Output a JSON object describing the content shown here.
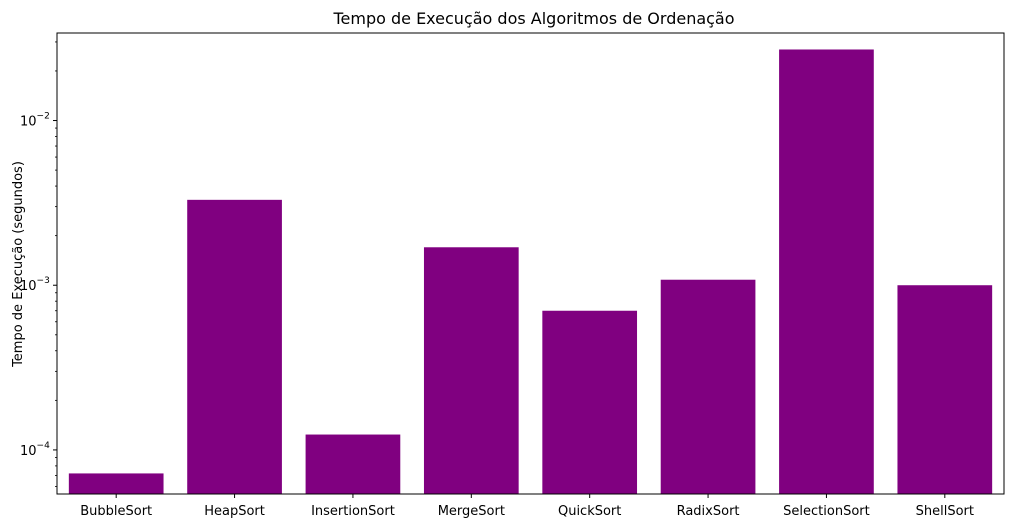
{
  "chart_data": {
    "type": "bar",
    "title": "Tempo de Execução dos Algoritmos de Ordenação",
    "xlabel": "",
    "ylabel": "Tempo de Execução (segundos)",
    "yscale": "log",
    "ylim": [
      5.4e-05,
      0.034
    ],
    "categories": [
      "BubbleSort",
      "HeapSort",
      "InsertionSort",
      "MergeSort",
      "QuickSort",
      "RadixSort",
      "SelectionSort",
      "ShellSort"
    ],
    "values": [
      7.2e-05,
      0.0033,
      0.000124,
      0.0017,
      0.0007,
      0.00108,
      0.027,
      0.001
    ],
    "bar_color": "#800080",
    "y_ticks": [
      {
        "value": 0.0001,
        "base": "10",
        "exp": "−4"
      },
      {
        "value": 0.001,
        "base": "10",
        "exp": "−3"
      },
      {
        "value": 0.01,
        "base": "10",
        "exp": "−2"
      }
    ],
    "grid": false,
    "legend": "none"
  }
}
